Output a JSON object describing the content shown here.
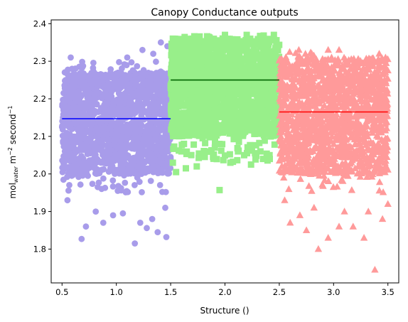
{
  "chart_data": {
    "type": "scatter",
    "title": "Canopy Conductance outputs",
    "xlabel": "Structure ()",
    "ylabel_parts": {
      "base": "mol",
      "subscript": "water",
      "rest": " m",
      "exp1": "−2",
      "mid": " second",
      "exp2": "−1"
    },
    "xlim": [
      0.4,
      3.6
    ],
    "ylim": [
      1.71,
      2.41
    ],
    "xticks": [
      0.5,
      1.0,
      1.5,
      2.0,
      2.5,
      3.0,
      3.5
    ],
    "xtick_labels": [
      "0.5",
      "1.0",
      "1.5",
      "2.0",
      "2.5",
      "3.0",
      "3.5"
    ],
    "yticks": [
      1.8,
      1.9,
      2.0,
      2.1,
      2.2,
      2.3,
      2.4
    ],
    "ytick_labels": [
      "1.8",
      "1.9",
      "2.0",
      "2.1",
      "2.2",
      "2.3",
      "2.4"
    ],
    "grid": false,
    "series": [
      {
        "marker": "circle",
        "color": "#a89cea",
        "x_range": [
          0.5,
          1.5
        ],
        "band": [
          1.95,
          2.3
        ],
        "core": [
          2.0,
          2.27
        ],
        "mean": 2.147,
        "mean_color": "#0000ff",
        "outliers": [
          [
            0.68,
            1.827
          ],
          [
            1.17,
            1.815
          ],
          [
            1.28,
            1.856
          ],
          [
            1.38,
            1.845
          ],
          [
            1.46,
            1.832
          ],
          [
            0.97,
            1.89
          ],
          [
            1.06,
            1.895
          ],
          [
            0.88,
            1.87
          ],
          [
            0.72,
            1.86
          ],
          [
            1.22,
            1.87
          ],
          [
            0.55,
            1.93
          ],
          [
            1.45,
            1.91
          ],
          [
            1.33,
            1.88
          ],
          [
            0.81,
            1.9
          ],
          [
            1.41,
            2.35
          ],
          [
            1.24,
            2.33
          ],
          [
            0.58,
            2.31
          ],
          [
            1.34,
            2.32
          ],
          [
            1.47,
            2.34
          ],
          [
            1.1,
            2.31
          ]
        ]
      },
      {
        "marker": "square",
        "color": "#98ef8a",
        "x_range": [
          1.5,
          2.5
        ],
        "band": [
          2.03,
          2.37
        ],
        "core": [
          2.1,
          2.36
        ],
        "mean": 2.25,
        "mean_color": "#006400",
        "outliers": [
          [
            1.64,
            2.015
          ],
          [
            1.89,
            2.045
          ],
          [
            1.95,
            1.957
          ],
          [
            1.74,
            2.02
          ],
          [
            2.05,
            2.03
          ],
          [
            2.24,
            2.025
          ],
          [
            2.35,
            2.04
          ],
          [
            1.52,
            2.03
          ],
          [
            1.55,
            2.005
          ],
          [
            1.6,
            2.06
          ],
          [
            2.41,
            2.05
          ],
          [
            1.82,
            2.06
          ],
          [
            2.12,
            2.06
          ],
          [
            2.2,
            2.37
          ],
          [
            1.52,
            2.36
          ],
          [
            2.45,
            2.37
          ],
          [
            1.7,
            2.36
          ],
          [
            2.0,
            2.37
          ]
        ]
      },
      {
        "marker": "triangle",
        "color": "#ff9a9a",
        "x_range": [
          2.5,
          3.5
        ],
        "band": [
          1.95,
          2.33
        ],
        "core": [
          2.0,
          2.31
        ],
        "mean": 2.165,
        "mean_color": "#ff0000",
        "outliers": [
          [
            3.38,
            1.745
          ],
          [
            3.28,
            1.83
          ],
          [
            2.86,
            1.8
          ],
          [
            2.75,
            1.85
          ],
          [
            3.05,
            1.86
          ],
          [
            2.6,
            1.87
          ],
          [
            3.18,
            1.86
          ],
          [
            3.45,
            1.88
          ],
          [
            2.95,
            1.83
          ],
          [
            3.1,
            1.9
          ],
          [
            2.69,
            1.89
          ],
          [
            3.32,
            1.9
          ],
          [
            2.55,
            1.93
          ],
          [
            3.5,
            1.92
          ],
          [
            2.82,
            1.91
          ],
          [
            2.68,
            2.33
          ],
          [
            3.05,
            2.33
          ],
          [
            2.95,
            2.33
          ],
          [
            3.42,
            2.32
          ],
          [
            2.8,
            2.32
          ]
        ]
      }
    ]
  }
}
